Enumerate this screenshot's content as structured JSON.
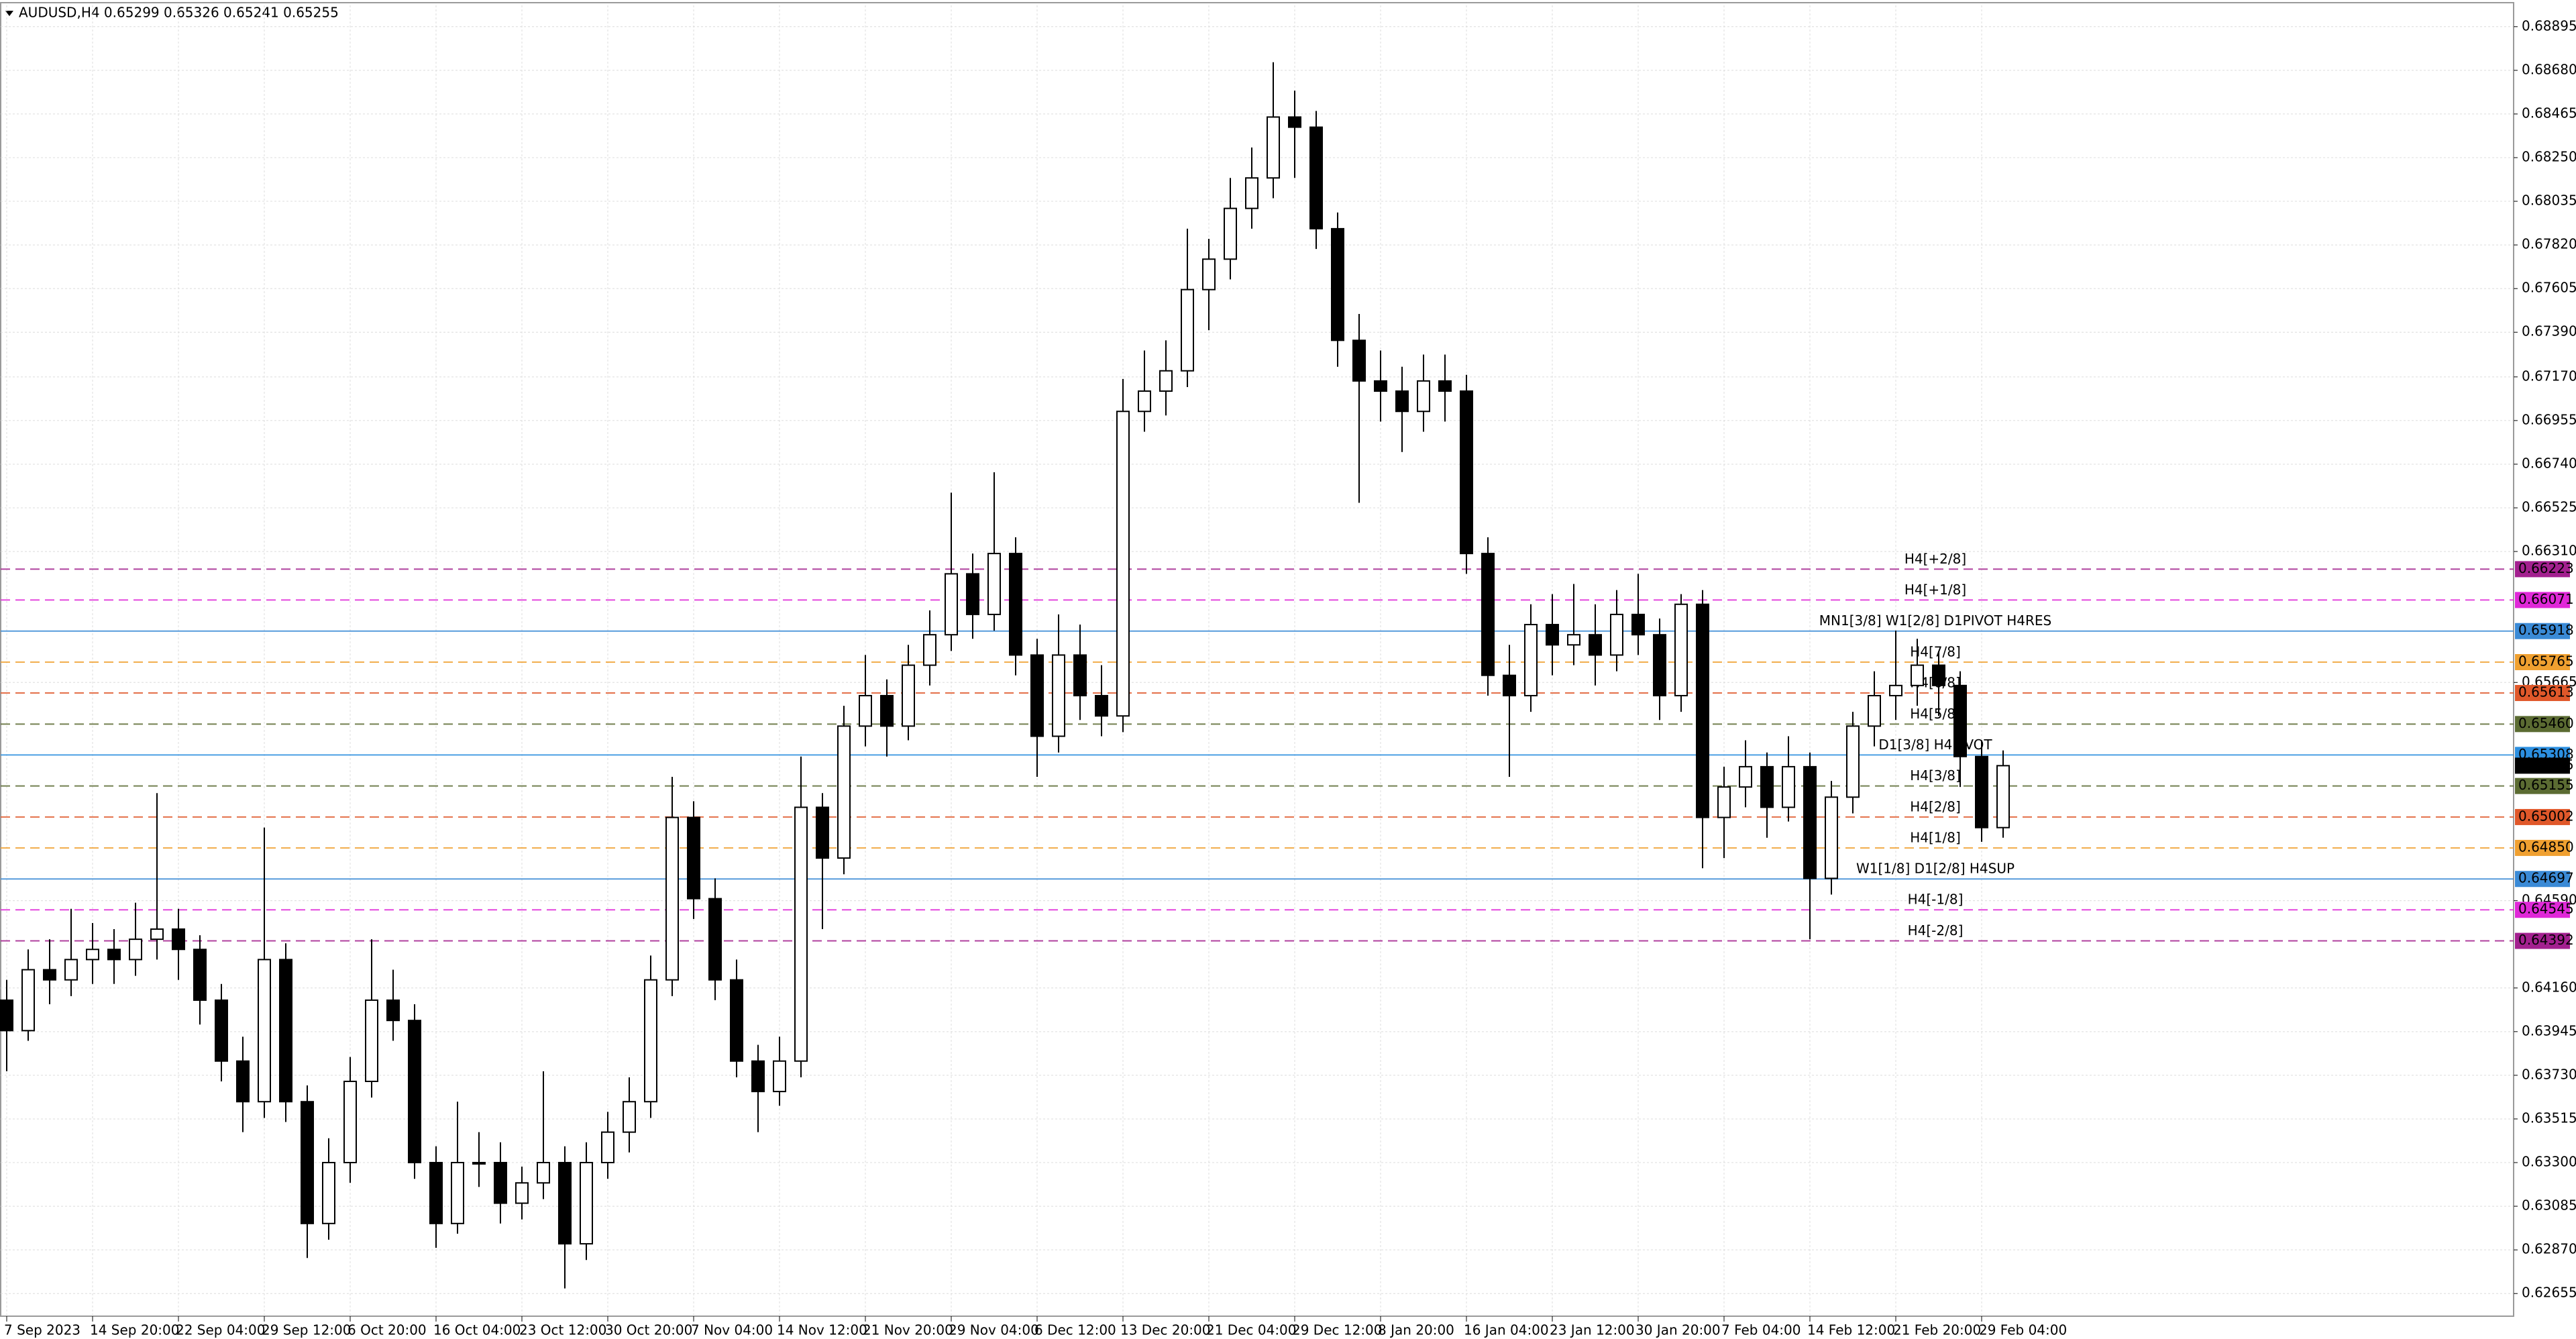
{
  "chart_data": {
    "type": "candlestick",
    "title": "AUDUSD,H4  0.65299 0.65326 0.65241 0.65255",
    "categories": [
      "7 Sep 2023",
      null,
      null,
      null,
      "14 Sep 20:00",
      null,
      null,
      null,
      "22 Sep 04:00",
      null,
      null,
      null,
      "29 Sep 12:00",
      null,
      null,
      null,
      "6 Oct 20:00",
      null,
      null,
      null,
      "16 Oct 04:00",
      null,
      null,
      null,
      "23 Oct 12:00",
      null,
      null,
      null,
      "30 Oct 20:00",
      null,
      null,
      null,
      "7 Nov 04:00",
      null,
      null,
      null,
      "14 Nov 12:00",
      null,
      null,
      null,
      "21 Nov 20:00",
      null,
      null,
      null,
      "29 Nov 04:00",
      null,
      null,
      null,
      "6 Dec 12:00",
      null,
      null,
      null,
      "13 Dec 20:00",
      null,
      null,
      null,
      "21 Dec 04:00",
      null,
      null,
      null,
      "29 Dec 12:00",
      null,
      null,
      null,
      "8 Jan 20:00",
      null,
      null,
      null,
      "16 Jan 04:00",
      null,
      null,
      null,
      "23 Jan 12:00",
      null,
      null,
      null,
      "30 Jan 20:00",
      null,
      null,
      null,
      "7 Feb 04:00",
      null,
      null,
      null,
      "14 Feb 12:00",
      null,
      null,
      null,
      "21 Feb 20:00",
      null,
      null,
      null,
      "29 Feb 04:00",
      null
    ],
    "open": [
      0.641,
      0.6395,
      0.6425,
      0.642,
      0.643,
      0.6435,
      0.643,
      0.644,
      0.6445,
      0.6435,
      0.641,
      0.638,
      0.636,
      0.643,
      0.636,
      0.63,
      0.633,
      0.637,
      0.641,
      0.64,
      0.633,
      0.63,
      0.633,
      0.633,
      0.631,
      0.632,
      0.633,
      0.629,
      0.633,
      0.6345,
      0.636,
      0.642,
      0.65,
      0.646,
      0.642,
      0.638,
      0.6365,
      0.638,
      0.6505,
      0.648,
      0.6545,
      0.656,
      0.6545,
      0.6575,
      0.659,
      0.662,
      0.66,
      0.663,
      0.658,
      0.654,
      0.658,
      0.656,
      0.655,
      0.67,
      0.671,
      0.672,
      0.676,
      0.6775,
      0.68,
      0.6815,
      0.6845,
      0.684,
      0.679,
      0.6735,
      0.6715,
      0.671,
      0.67,
      0.6715,
      0.671,
      0.663,
      0.657,
      0.656,
      0.6595,
      0.6585,
      0.659,
      0.658,
      0.66,
      0.659,
      0.656,
      0.6605,
      0.65,
      0.6515,
      0.6525,
      0.6505,
      0.6525,
      0.647,
      0.651,
      0.6545,
      0.656,
      0.6565,
      0.6575,
      0.6565,
      0.653,
      0.6495
    ],
    "high": [
      0.642,
      0.6435,
      0.644,
      0.6455,
      0.6448,
      0.6445,
      0.6458,
      0.6512,
      0.6455,
      0.6442,
      0.6418,
      0.6392,
      0.6495,
      0.6438,
      0.6368,
      0.6342,
      0.6382,
      0.644,
      0.6425,
      0.6408,
      0.6338,
      0.636,
      0.6345,
      0.634,
      0.6328,
      0.6375,
      0.6338,
      0.634,
      0.6355,
      0.6372,
      0.6432,
      0.652,
      0.6508,
      0.647,
      0.643,
      0.6388,
      0.6392,
      0.653,
      0.6512,
      0.6555,
      0.658,
      0.6568,
      0.6585,
      0.6602,
      0.666,
      0.663,
      0.667,
      0.6638,
      0.6588,
      0.66,
      0.6595,
      0.6575,
      0.6716,
      0.673,
      0.6735,
      0.679,
      0.6785,
      0.6815,
      0.683,
      0.6872,
      0.6858,
      0.6848,
      0.6798,
      0.6748,
      0.673,
      0.6722,
      0.6728,
      0.6728,
      0.6718,
      0.6638,
      0.6585,
      0.6605,
      0.661,
      0.6615,
      0.6605,
      0.6612,
      0.662,
      0.6598,
      0.661,
      0.6612,
      0.6525,
      0.6538,
      0.6532,
      0.654,
      0.6532,
      0.6518,
      0.6552,
      0.6572,
      0.6592,
      0.6588,
      0.6582,
      0.6572,
      0.6538,
      0.6533
    ],
    "low": [
      0.6375,
      0.639,
      0.6408,
      0.6412,
      0.6418,
      0.6418,
      0.6422,
      0.643,
      0.642,
      0.6398,
      0.637,
      0.6345,
      0.6352,
      0.635,
      0.6283,
      0.6292,
      0.632,
      0.6362,
      0.639,
      0.6322,
      0.6288,
      0.6295,
      0.6318,
      0.63,
      0.6302,
      0.6312,
      0.6268,
      0.6282,
      0.6322,
      0.6335,
      0.6352,
      0.6412,
      0.645,
      0.641,
      0.6372,
      0.6345,
      0.6358,
      0.6372,
      0.6445,
      0.6472,
      0.6535,
      0.653,
      0.6538,
      0.6565,
      0.6582,
      0.6588,
      0.6592,
      0.657,
      0.652,
      0.6532,
      0.6548,
      0.654,
      0.6542,
      0.669,
      0.6698,
      0.6712,
      0.674,
      0.6765,
      0.679,
      0.6805,
      0.6815,
      0.678,
      0.6722,
      0.6655,
      0.6695,
      0.668,
      0.669,
      0.6695,
      0.662,
      0.656,
      0.652,
      0.6552,
      0.657,
      0.6575,
      0.6565,
      0.6572,
      0.658,
      0.6548,
      0.6552,
      0.6475,
      0.648,
      0.6505,
      0.649,
      0.6498,
      0.644,
      0.6462,
      0.6502,
      0.6535,
      0.6548,
      0.6555,
      0.655,
      0.6515,
      0.6488,
      0.649
    ],
    "close": [
      0.6395,
      0.6425,
      0.642,
      0.643,
      0.6435,
      0.643,
      0.644,
      0.6445,
      0.6435,
      0.641,
      0.638,
      0.636,
      0.643,
      0.636,
      0.63,
      0.633,
      0.637,
      0.641,
      0.64,
      0.633,
      0.63,
      0.633,
      0.633,
      0.631,
      0.632,
      0.633,
      0.629,
      0.633,
      0.6345,
      0.636,
      0.642,
      0.65,
      0.646,
      0.642,
      0.638,
      0.6365,
      0.638,
      0.6505,
      0.648,
      0.6545,
      0.656,
      0.6545,
      0.6575,
      0.659,
      0.662,
      0.66,
      0.663,
      0.658,
      0.654,
      0.658,
      0.656,
      0.655,
      0.67,
      0.671,
      0.672,
      0.676,
      0.6775,
      0.68,
      0.6815,
      0.6845,
      0.684,
      0.679,
      0.6735,
      0.6715,
      0.671,
      0.67,
      0.6715,
      0.671,
      0.663,
      0.657,
      0.656,
      0.6595,
      0.6585,
      0.659,
      0.658,
      0.66,
      0.659,
      0.656,
      0.6605,
      0.65,
      0.6515,
      0.6525,
      0.6505,
      0.6525,
      0.647,
      0.651,
      0.6545,
      0.656,
      0.6565,
      0.6575,
      0.6565,
      0.653,
      0.6495,
      0.65255
    ],
    "bull_color": "#ffffff",
    "bear_color": "#000000",
    "ylim": [
      0.6255,
      0.69
    ],
    "yticks": [
      {
        "value": 0.68895,
        "label": "0.68895"
      },
      {
        "value": 0.6868,
        "label": "0.68680"
      },
      {
        "value": 0.68465,
        "label": "0.68465"
      },
      {
        "value": 0.6825,
        "label": "0.68250"
      },
      {
        "value": 0.68035,
        "label": "0.68035"
      },
      {
        "value": 0.6782,
        "label": "0.67820"
      },
      {
        "value": 0.67605,
        "label": "0.67605"
      },
      {
        "value": 0.6739,
        "label": "0.67390"
      },
      {
        "value": 0.6717,
        "label": "0.67170"
      },
      {
        "value": 0.66955,
        "label": "0.66955"
      },
      {
        "value": 0.6674,
        "label": "0.66740"
      },
      {
        "value": 0.66525,
        "label": "0.66525"
      },
      {
        "value": 0.6631,
        "label": "0.66310"
      },
      {
        "value": 0.65665,
        "label": "0.65665"
      },
      {
        "value": 0.6459,
        "label": "0.64590"
      },
      {
        "value": 0.6416,
        "label": "0.64160"
      },
      {
        "value": 0.63945,
        "label": "0.63945"
      },
      {
        "value": 0.6373,
        "label": "0.63730"
      },
      {
        "value": 0.63515,
        "label": "0.63515"
      },
      {
        "value": 0.633,
        "label": "0.63300"
      },
      {
        "value": 0.63085,
        "label": "0.63085"
      },
      {
        "value": 0.6287,
        "label": "0.62870"
      },
      {
        "value": 0.62655,
        "label": "0.62655"
      }
    ],
    "grid": true,
    "levels": [
      {
        "name": "H4[+2/8]",
        "value": 0.66223,
        "tag": "0.66223",
        "color": "#a3208f",
        "line": "dashed"
      },
      {
        "name": "H4[+1/8]",
        "value": 0.66071,
        "tag": "0.66071",
        "color": "#e028d8",
        "line": "dashed"
      },
      {
        "name": "MN1[3/8] W1[2/8] D1PIVOT H4RES",
        "value": 0.65918,
        "tag": "0.65918",
        "color": "#3a8ad6",
        "line": "solid"
      },
      {
        "name": "H4[7/8]",
        "value": 0.65765,
        "tag": "0.65765",
        "color": "#f0a030",
        "line": "dashed"
      },
      {
        "name": "H4[6/8]",
        "value": 0.65613,
        "tag": "0.65613",
        "color": "#e0582a",
        "line": "dashed"
      },
      {
        "name": "H4[5/8]",
        "value": 0.6546,
        "tag": "0.65460",
        "color": "#5b6b32",
        "line": "dashed"
      },
      {
        "name": "D1[3/8] H4PIVOT",
        "value": 0.65308,
        "tag": "0.65308",
        "color": "#2c8fe0",
        "line": "solid"
      },
      {
        "name": "H4[3/8]",
        "value": 0.65155,
        "tag": "0.65155",
        "color": "#5b6b32",
        "line": "dashed"
      },
      {
        "name": "H4[2/8]",
        "value": 0.65002,
        "tag": "0.65002",
        "color": "#e0582a",
        "line": "dashed"
      },
      {
        "name": "H4[1/8]",
        "value": 0.6485,
        "tag": "0.64850",
        "color": "#f0a030",
        "line": "dashed"
      },
      {
        "name": "W1[1/8] D1[2/8] H4SUP",
        "value": 0.64697,
        "tag": "0.64697",
        "color": "#3a8ad6",
        "line": "solid"
      },
      {
        "name": "H4[-1/8]",
        "value": 0.64545,
        "tag": "0.64545",
        "color": "#e028d8",
        "line": "dashed"
      },
      {
        "name": "H4[-2/8]",
        "value": 0.64392,
        "tag": "0.64392",
        "color": "#a3208f",
        "line": "dashed"
      }
    ],
    "current_price": 0.65255,
    "current_color": "#000000"
  }
}
